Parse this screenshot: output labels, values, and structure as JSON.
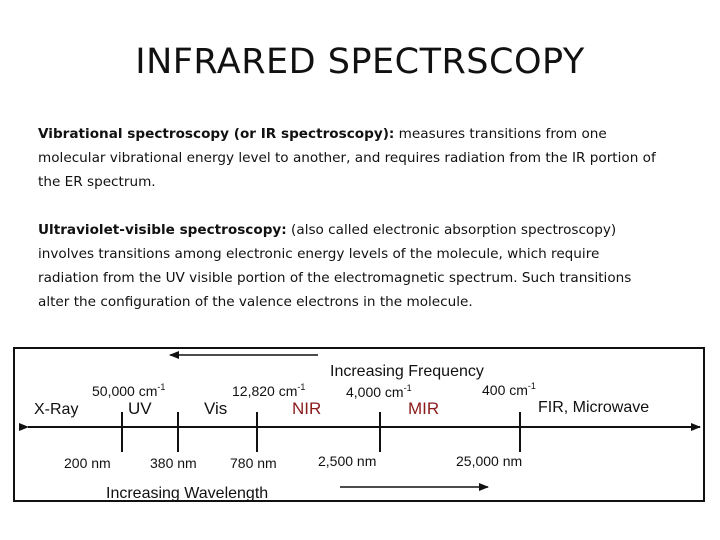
{
  "slide": {
    "title": "INFRARED SPECTRSCOPY"
  },
  "paragraph1": {
    "term": "Vibrational spectroscopy (or IR spectroscopy):",
    "text": " measures transitions from one molecular vibrational energy level to another, and requires radiation from the IR portion of the ER spectrum."
  },
  "paragraph2": {
    "term": "Ultraviolet-visible spectroscopy:",
    "text": " (also called electronic absorption spectroscopy) involves transitions among electronic energy levels of the molecule, which require radiation from the UV visible portion of the electromagnetic spectrum. Such transitions alter the configuration of the valence electrons in the molecule."
  },
  "spectrum": {
    "increasing_frequency": "Increasing Frequency",
    "increasing_wavelength": "Increasing Wavelength",
    "regions": {
      "xray": "X-Ray",
      "uv": "UV",
      "vis": "Vis",
      "nir": "NIR",
      "mir": "MIR",
      "fir": "FIR, Microwave"
    },
    "wavenumbers": {
      "w50000": "50,000 cm",
      "w12820": "12,820 cm",
      "w4000": "4,000 cm",
      "w400": "400 cm",
      "exponent": "-1"
    },
    "wavelengths": {
      "l200": "200 nm",
      "l380": "380 nm",
      "l780": "780 nm",
      "l2500": "2,500 nm",
      "l25000": "25,000 nm"
    },
    "colors": {
      "line": "#111111",
      "nir_mir": "#8b1a1a"
    }
  }
}
